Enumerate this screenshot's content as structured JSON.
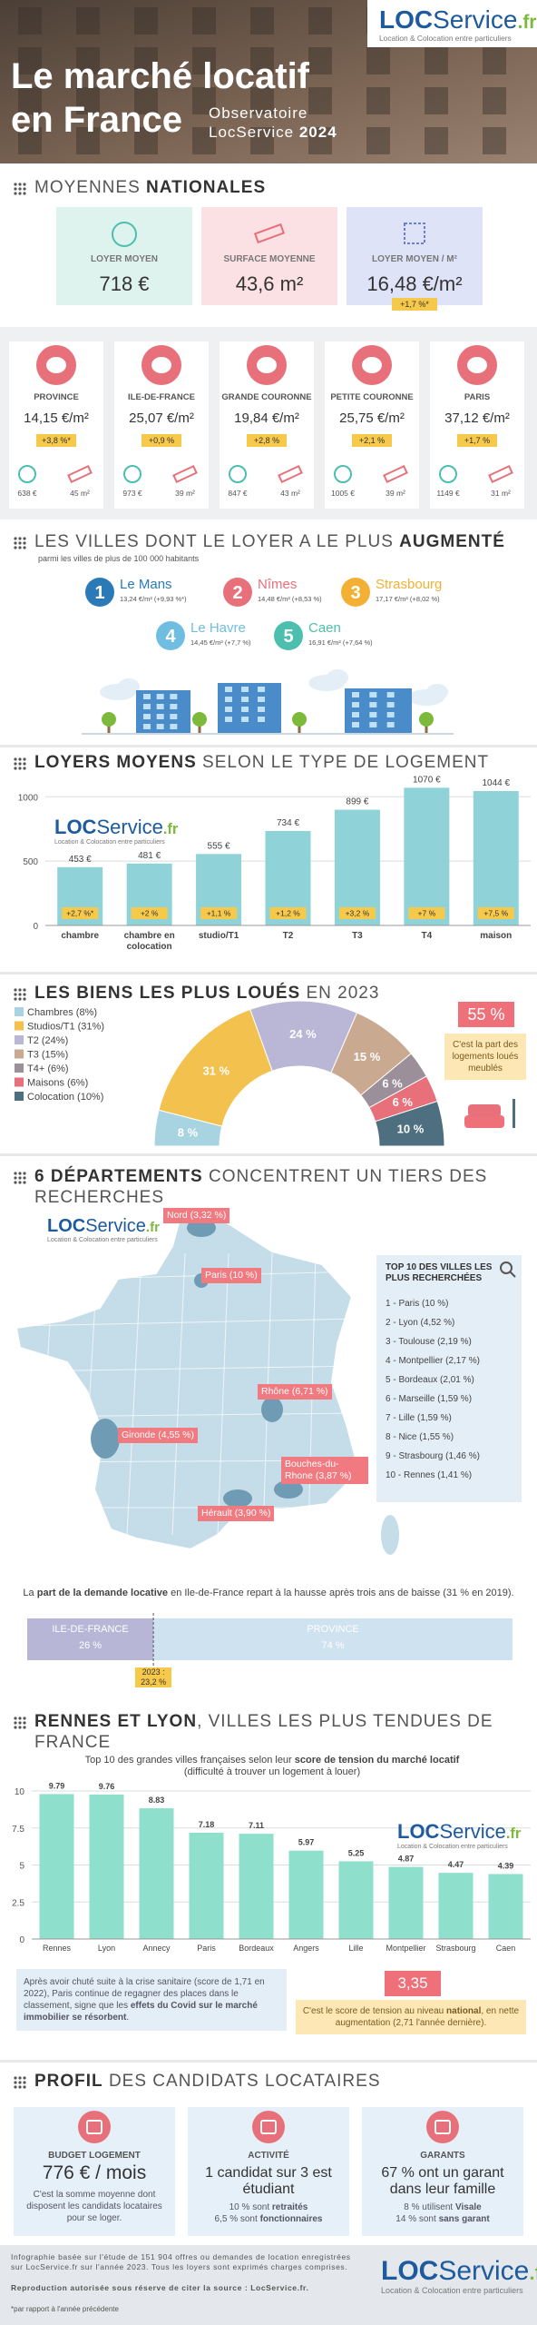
{
  "header": {
    "title_lines": [
      "Le marché locatif",
      "en France"
    ],
    "subtitle_lines": [
      "Observatoire",
      "LocService"
    ],
    "year": "2024"
  },
  "logo": {
    "brand": "LOC",
    "brand2": "Service",
    "tld": ".fr",
    "tagline": "Location & Colocation entre particuliers"
  },
  "nationales": {
    "heading": [
      {
        "text": "MOYENNES",
        "bold": false
      },
      {
        "text": "NATIONALES",
        "bold": true
      }
    ],
    "cards": [
      {
        "label": "LOYER MOYEN",
        "value": "718 €",
        "color": "#dff3ee"
      },
      {
        "label": "SURFACE MOYENNE",
        "value": "43,6 m²",
        "color": "#fbe1e3"
      },
      {
        "label": "LOYER MOYEN / M²",
        "value": "16,48 €/m²",
        "change": "+1,7 %*",
        "color": "#dfe3f7"
      }
    ]
  },
  "regions": [
    {
      "name": "PROVINCE",
      "loyer_m2": "14,15 €/m²",
      "change": "+3,8 %*",
      "rent": "638 €",
      "surface": "45 m²"
    },
    {
      "name": "ILE-DE-FRANCE",
      "loyer_m2": "25,07 €/m²",
      "change": "+0,9 %",
      "rent": "973 €",
      "surface": "39 m²"
    },
    {
      "name": "GRANDE COURONNE",
      "loyer_m2": "19,84 €/m²",
      "change": "+2,8 %",
      "rent": "847 €",
      "surface": "43 m²"
    },
    {
      "name": "PETITE COURONNE",
      "loyer_m2": "25,75 €/m²",
      "change": "+2,1 %",
      "rent": "1005 €",
      "surface": "39 m²"
    },
    {
      "name": "PARIS",
      "loyer_m2": "37,12 €/m²",
      "change": "+1,7 %",
      "rent": "1149 €",
      "surface": "31 m²"
    }
  ],
  "villes": {
    "heading": [
      {
        "text": "LES VILLES DONT LE LOYER A LE PLUS",
        "bold": false
      },
      {
        "text": "AUGMENTÉ",
        "bold": true
      }
    ],
    "note": "parmi les villes de plus de 100 000 habitants",
    "items": [
      {
        "rank": "1",
        "city": "Le Mans",
        "detail": "13,24 €/m² (+9,93 %*)",
        "color": "#2a7ab8"
      },
      {
        "rank": "2",
        "city": "Nîmes",
        "detail": "14,48 €/m² (+8,53 %)",
        "color": "#e8707a"
      },
      {
        "rank": "3",
        "city": "Strasbourg",
        "detail": "17,17 €/m² (+8,02 %)",
        "color": "#f2b134"
      },
      {
        "rank": "4",
        "city": "Le Havre",
        "detail": "14,45 €/m² (+7,7 %)",
        "color": "#6fbde0"
      },
      {
        "rank": "5",
        "city": "Caen",
        "detail": "16,91 €/m² (+7,64 %)",
        "color": "#4cbfae"
      }
    ]
  },
  "chart_data": [
    {
      "type": "bar",
      "title_parts": [
        {
          "text": "LOYERS MOYENS",
          "bold": true
        },
        {
          "text": "SELON LE TYPE DE LOGEMENT",
          "bold": false
        }
      ],
      "categories": [
        "chambre",
        "chambre en colocation",
        "studio/T1",
        "T2",
        "T3",
        "T4",
        "maison"
      ],
      "values": [
        453,
        481,
        555,
        734,
        899,
        1070,
        1044
      ],
      "value_labels": [
        "453 €",
        "481 €",
        "555 €",
        "734 €",
        "899 €",
        "1070 €",
        "1044 €"
      ],
      "change_labels": [
        "+2,7 %*",
        "+2 %",
        "+1,1 %",
        "+1,2 %",
        "+3,2 %",
        "+7 %",
        "+7,5 %"
      ],
      "color": "#8fd3d8",
      "badge_color": "#f7c94b",
      "ylim": [
        0,
        1150
      ],
      "yticks": [
        0,
        500,
        1000
      ],
      "grid": true
    },
    {
      "type": "pie",
      "title_parts": [
        {
          "text": "LES BIENS LES PLUS LOUÉS",
          "bold": true
        },
        {
          "text": "EN 2023",
          "bold": false
        }
      ],
      "categories": [
        "Chambres (8%)",
        "Studios/T1 (31%)",
        "T2 (24%)",
        "T3 (15%)",
        "T4+ (6%)",
        "Maisons (6%)",
        "Colocation (10%)"
      ],
      "values": [
        8,
        31,
        24,
        15,
        6,
        6,
        10
      ],
      "value_labels": [
        "8 %",
        "31 %",
        "24 %",
        "15 %",
        "6 %",
        "6 %",
        "10 %"
      ],
      "colors": [
        "#a8d3e0",
        "#f2c14e",
        "#b9b6d6",
        "#c9a98f",
        "#9b8f99",
        "#e8707a",
        "#4d6f80"
      ],
      "legend": "left",
      "callout": {
        "value": "55 %",
        "text": "C'est la part des logements loués meublés"
      }
    },
    {
      "type": "bar",
      "title_parts": [
        {
          "text": "RENNES ET LYON",
          "bold": true
        },
        {
          "text": ", VILLES LES PLUS TENDUES DE FRANCE",
          "bold": false
        }
      ],
      "subtitle_parts": [
        {
          "text": "Top 10 des grandes villes françaises selon leur",
          "bold": false
        },
        {
          "text": "score de tension du marché locatif",
          "bold": true
        },
        {
          "text": "(difficulté à trouver un logement à louer)",
          "bold": false
        }
      ],
      "categories": [
        "Rennes",
        "Lyon",
        "Annecy",
        "Paris",
        "Bordeaux",
        "Angers",
        "Lille",
        "Montpellier",
        "Strasbourg",
        "Caen"
      ],
      "values": [
        9.79,
        9.76,
        8.83,
        7.18,
        7.11,
        5.97,
        5.25,
        4.87,
        4.47,
        4.39
      ],
      "color": "#8ee0cc",
      "ylim": [
        0,
        10
      ],
      "yticks": [
        0,
        2.5,
        5,
        7.5,
        10
      ],
      "grid": true
    }
  ],
  "departements": {
    "heading": [
      {
        "text": "6 DÉPARTEMENTS",
        "bold": true
      },
      {
        "text": "CONCENTRENT UN TIERS DES RECHERCHES",
        "bold": false
      }
    ],
    "map_labels": [
      "Nord (3,32 %)",
      "Paris (10 %)",
      "Rhône (6,71 %)",
      "Gironde (4,55 %)",
      "Bouches-du-Rhone (3,87 %)",
      "Hérault (3,90 %)"
    ],
    "top10": {
      "title": "TOP 10 DES VILLES LES PLUS RECHERCHÉES",
      "items": [
        "1 - Paris (10 %)",
        "2 - Lyon (4,52 %)",
        "3 - Toulouse (2,19 %)",
        "4 - Montpellier (2,17 %)",
        "5 - Bordeaux (2,01 %)",
        "6 - Marseille (1,59 %)",
        "7 - Lille (1,59 %)",
        "8 - Nice (1,55 %)",
        "9 - Strasbourg (1,46 %)",
        "10 - Rennes (1,41 %)"
      ]
    }
  },
  "demande": {
    "text_parts": [
      {
        "text": "La",
        "bold": false
      },
      {
        "text": "part de la demande locative",
        "bold": true
      },
      {
        "text": "en Ile-de-France repart à la hausse après trois ans de baisse (31 % en 2019).",
        "bold": false
      }
    ],
    "segments": [
      {
        "name": "ILE-DE-FRANCE",
        "value": 26,
        "label": "26 %",
        "color": "#b7b6d6"
      },
      {
        "name": "PROVINCE",
        "value": 74,
        "label": "74 %",
        "color": "#cfe2f0"
      }
    ],
    "note_lines": [
      "2023 :",
      "23,2 %"
    ]
  },
  "tension_notes": {
    "left_parts": [
      {
        "text": "Après avoir chuté suite à la crise sanitaire (score de 1,71 en 2022), Paris continue de regagner des places dans le classement, signe que les",
        "bold": false
      },
      {
        "text": "effets du Covid sur le marché immobilier se résorbent",
        "bold": true
      },
      {
        "text": ".",
        "bold": false
      }
    ],
    "national_value": "3,35",
    "right_parts": [
      {
        "text": "C'est le score de tension au niveau",
        "bold": false
      },
      {
        "text": "national",
        "bold": true
      },
      {
        "text": ", en nette augmentation (2,71 l'année dernière).",
        "bold": false
      }
    ]
  },
  "profil": {
    "heading": [
      {
        "text": "PROFIL",
        "bold": true
      },
      {
        "text": "DES CANDIDATS LOCATAIRES",
        "bold": false
      }
    ],
    "cards": [
      {
        "title": "BUDGET LOGEMENT",
        "main": "776 € / mois",
        "lines": [
          [
            {
              "text": "C'est la somme moyenne dont disposent les candidats locataires pour se loger.",
              "bold": false
            }
          ]
        ]
      },
      {
        "title": "ACTIVITÉ",
        "main": "1 candidat sur 3 est étudiant",
        "lines": [
          [
            {
              "text": "10 % sont",
              "bold": false
            },
            {
              "text": "retraités",
              "bold": true
            }
          ],
          [
            {
              "text": "6,5 % sont",
              "bold": false
            },
            {
              "text": "fonctionnaires",
              "bold": true
            }
          ]
        ]
      },
      {
        "title": "GARANTS",
        "main": "67 % ont un garant dans leur famille",
        "lines": [
          [
            {
              "text": "8 % utilisent",
              "bold": false
            },
            {
              "text": "Visale",
              "bold": true
            }
          ],
          [
            {
              "text": "14 % sont",
              "bold": false
            },
            {
              "text": "sans garant",
              "bold": true
            }
          ]
        ]
      }
    ]
  },
  "footer": {
    "text": "Infographie basée sur l'étude de 151 904 offres ou demandes de location enregistrées sur LocService.fr sur l'année 2023. Tous les loyers sont exprimés charges comprises.",
    "reproduction": "Reproduction autorisée sous réserve de citer la source : LocService.fr.",
    "note": "*par rapport à l'année précédente"
  }
}
